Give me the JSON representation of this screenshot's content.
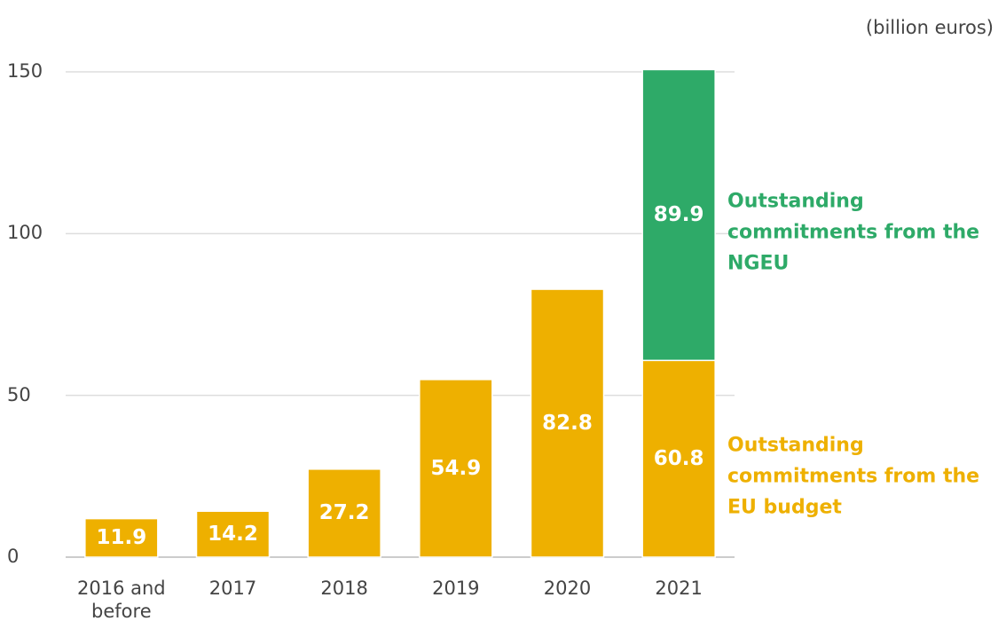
{
  "chart_data": {
    "type": "stacked_bar",
    "unit_label": "(billion euros)",
    "categories": [
      "2016 and before",
      "2017",
      "2018",
      "2019",
      "2020",
      "2021"
    ],
    "series": [
      {
        "name": "Outstanding commitments from the EU budget",
        "color": "#eeb000",
        "values": [
          11.9,
          14.2,
          27.2,
          54.9,
          82.8,
          60.8
        ]
      },
      {
        "name": "Outstanding commitments from the NGEU",
        "color": "#2eaa68",
        "values": [
          null,
          null,
          null,
          null,
          null,
          89.9
        ]
      }
    ],
    "ylim": [
      0,
      150
    ],
    "yticks": [
      0,
      50,
      100,
      150
    ],
    "grid": true,
    "legend": "right"
  }
}
